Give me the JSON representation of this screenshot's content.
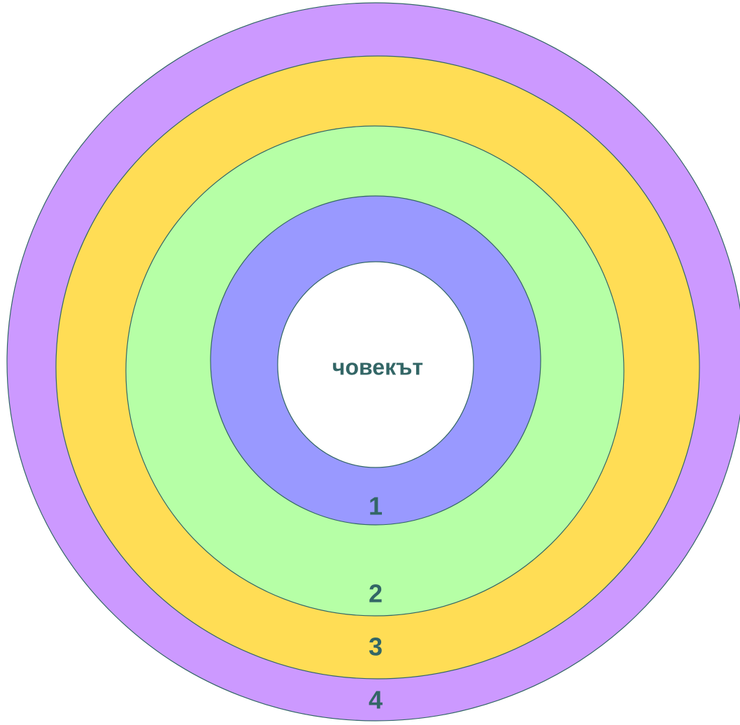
{
  "center": {
    "label": "човекът"
  },
  "rings": [
    {
      "label": "1"
    },
    {
      "label": "2"
    },
    {
      "label": "3"
    },
    {
      "label": "4"
    }
  ]
}
